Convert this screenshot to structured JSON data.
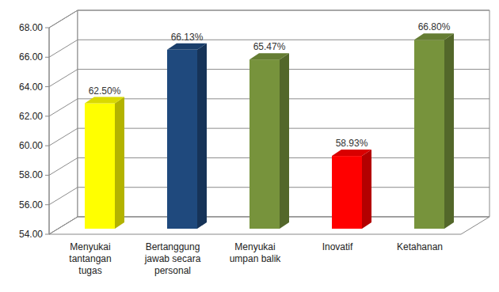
{
  "chart_data": {
    "type": "bar",
    "categories": [
      "Menyukai tantangan tugas",
      "Bertanggung jawab secara personal",
      "Menyukai umpan balik",
      "Inovatif",
      "Ketahanan"
    ],
    "values": [
      62.5,
      66.13,
      65.47,
      58.93,
      66.8
    ],
    "value_labels": [
      "62.50%",
      "66.13%",
      "65.47%",
      "58.93%",
      "66.80%"
    ],
    "colors": [
      "#ffff00",
      "#1f497d",
      "#77933c",
      "#ff0000",
      "#77933c"
    ],
    "ylim": [
      54,
      68
    ],
    "yticks": [
      {
        "value": 54,
        "label": "54.00"
      },
      {
        "value": 56,
        "label": "56.00"
      },
      {
        "value": 58,
        "label": "58.00"
      },
      {
        "value": 60,
        "label": "60.00"
      },
      {
        "value": 62,
        "label": "62.00"
      },
      {
        "value": 64,
        "label": "64.00"
      },
      {
        "value": 66,
        "label": "66.00"
      },
      {
        "value": 68,
        "label": "68.00"
      }
    ],
    "grid": true,
    "data_labels": true
  }
}
